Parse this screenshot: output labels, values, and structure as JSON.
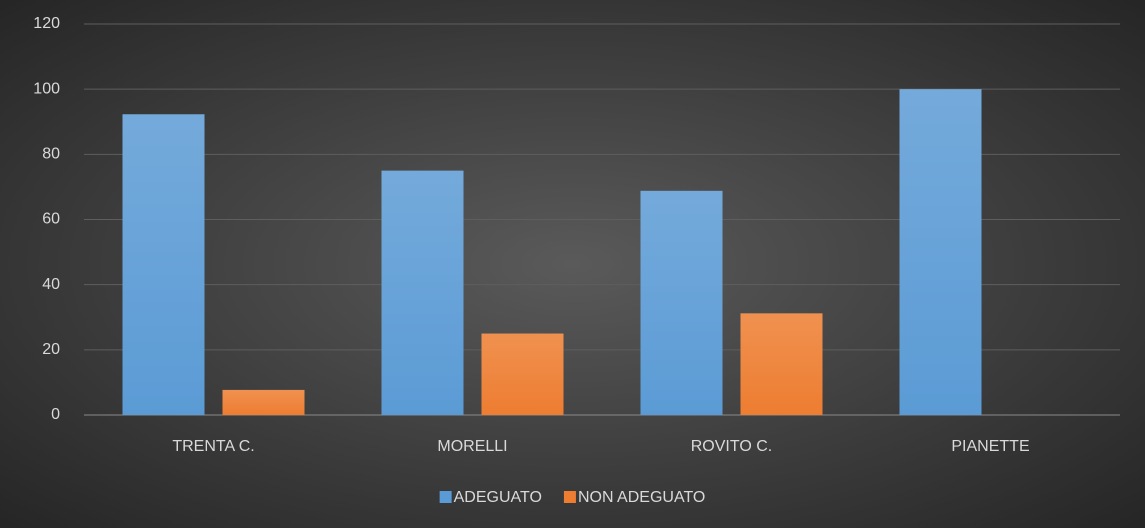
{
  "chart_data": {
    "type": "bar",
    "categories": [
      "TRENTA C.",
      "MORELLI",
      "ROVITO C.",
      "PIANETTE"
    ],
    "series": [
      {
        "name": "ADEGUATO",
        "color": "#5b9bd5",
        "values": [
          92.3,
          75,
          68.8,
          100
        ]
      },
      {
        "name": "NON ADEGUATO",
        "color": "#ed7d31",
        "values": [
          7.7,
          25,
          31.2,
          0
        ]
      }
    ],
    "ylim": [
      0,
      120
    ],
    "yticks": [
      0,
      20,
      40,
      60,
      80,
      100,
      120
    ],
    "grid": true,
    "legend": "bottom"
  }
}
